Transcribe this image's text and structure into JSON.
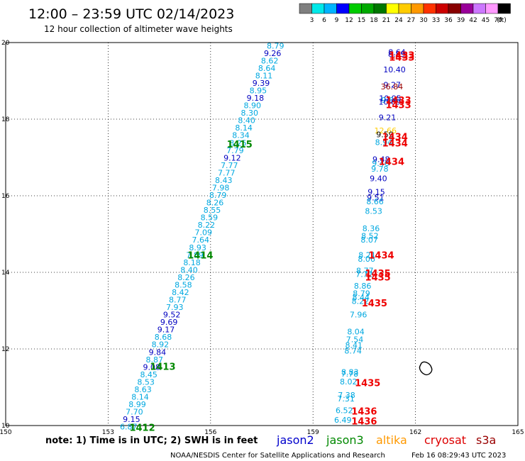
{
  "header": {
    "title": "12:00 – 23:59 UTC 02/14/2023",
    "subtitle": "12 hour collection of altimeter wave heights"
  },
  "colorbar": {
    "colors": [
      "#7f7f7f",
      "#00e8e8",
      "#00b4ff",
      "#0000ff",
      "#00cc00",
      "#00aa00",
      "#007700",
      "#ffff00",
      "#ffcc00",
      "#ff9900",
      "#ff3300",
      "#cc0000",
      "#880000",
      "#990099",
      "#cc77ff",
      "#ff99ff",
      "#000000"
    ],
    "labels": [
      "3",
      "6",
      "9",
      "12",
      "15",
      "18",
      "21",
      "24",
      "27",
      "30",
      "33",
      "36",
      "39",
      "42",
      "45",
      "70"
    ],
    "unit": "(ft)"
  },
  "footer": {
    "note": "note: 1) Time is in UTC; 2) SWH is in feet",
    "legend": [
      {
        "name": "jason2",
        "color": "#0000cc"
      },
      {
        "name": "jason3",
        "color": "#008800"
      },
      {
        "name": "altika",
        "color": "#ff9900"
      },
      {
        "name": "cryosat",
        "color": "#dd0000"
      },
      {
        "name": "s3a",
        "color": "#990000"
      }
    ],
    "credit": "NOAA/NESDIS Center for Satellite Applications and Research",
    "timestamp": "Feb 16 08:29:43 UTC 2023"
  },
  "chart_data": {
    "type": "scatter",
    "xlim": [
      150,
      165
    ],
    "ylim": [
      10,
      20
    ],
    "x_ticks": [
      150,
      153,
      156,
      159,
      162,
      165
    ],
    "y_ticks": [
      10,
      12,
      14,
      16,
      18,
      20
    ],
    "grid": true,
    "track_a": {
      "swh": [
        "6.87",
        "9.15",
        "7.70",
        "8.99",
        "8.14",
        "8.63",
        "8.53",
        "8.45",
        "9.08",
        "8.87",
        "9.84",
        "8.92",
        "8.68",
        "9.17",
        "9.69",
        "9.52",
        "7.93",
        "8.77",
        "8.42",
        "8.58",
        "8.26",
        "8.40",
        "8.18",
        "7.89",
        "8.93",
        "7.64",
        "7.09",
        "8.22",
        "8.59",
        "8.55",
        "8.26",
        "8.79",
        "7.98",
        "8.43",
        "7.77",
        "7.77",
        "9.12",
        "7.79",
        "8.25",
        "8.34",
        "8.14",
        "8.40",
        "8.30",
        "8.90",
        "9.18",
        "8.95",
        "9.39",
        "8.11",
        "8.64",
        "8.62",
        "9.26",
        "8.79"
      ],
      "colors": [
        "c",
        "d",
        "c",
        "c",
        "c",
        "c",
        "c",
        "c",
        "d",
        "c",
        "d",
        "c",
        "c",
        "d",
        "d",
        "d",
        "c",
        "c",
        "c",
        "c",
        "c",
        "c",
        "c",
        "c",
        "c",
        "c",
        "c",
        "c",
        "c",
        "c",
        "c",
        "c",
        "c",
        "c",
        "c",
        "c",
        "d",
        "c",
        "c",
        "c",
        "c",
        "c",
        "c",
        "c",
        "d",
        "c",
        "d",
        "c",
        "c",
        "c",
        "d",
        "c"
      ],
      "lat_start": 9.97,
      "lat_end": 19.92,
      "lon_start": 153.6,
      "lon_end": 157.9
    },
    "track_b": [
      {
        "lat": 19.75,
        "swh": "8.64",
        "c": "d"
      },
      {
        "lat": 19.7,
        "swh": "8.89",
        "c": "d"
      },
      {
        "lat": 19.3,
        "swh": "10.40",
        "c": "d"
      },
      {
        "lat": 18.9,
        "swh": "9.27",
        "c": "d"
      },
      {
        "lat": 18.85,
        "swh": "36.84",
        "c": "m"
      },
      {
        "lat": 18.55,
        "swh": "10.95",
        "c": "d"
      },
      {
        "lat": 18.5,
        "swh": "9.66",
        "c": "c"
      },
      {
        "lat": 18.45,
        "swh": "10.09",
        "c": "d"
      },
      {
        "lat": 18.05,
        "swh": "9.21",
        "c": "d"
      },
      {
        "lat": 17.7,
        "swh": "12.66",
        "c": "y"
      },
      {
        "lat": 17.6,
        "swh": "9.59",
        "c": "k"
      },
      {
        "lat": 17.4,
        "swh": "8.94",
        "c": "c"
      },
      {
        "lat": 16.95,
        "swh": "9.48",
        "c": "d"
      },
      {
        "lat": 16.85,
        "swh": "9.46",
        "c": "c"
      },
      {
        "lat": 16.7,
        "swh": "9.78",
        "c": "c"
      },
      {
        "lat": 16.45,
        "swh": "9.40",
        "c": "d"
      },
      {
        "lat": 16.1,
        "swh": "9.15",
        "c": "d"
      },
      {
        "lat": 15.95,
        "swh": "9.51",
        "c": "d"
      },
      {
        "lat": 15.85,
        "swh": "8.66",
        "c": "c"
      },
      {
        "lat": 15.6,
        "swh": "8.53",
        "c": "c"
      },
      {
        "lat": 15.15,
        "swh": "8.36",
        "c": "c"
      },
      {
        "lat": 14.95,
        "swh": "8.52",
        "c": "c"
      },
      {
        "lat": 14.85,
        "swh": "8.07",
        "c": "c"
      },
      {
        "lat": 14.45,
        "swh": "8.21",
        "c": "c"
      },
      {
        "lat": 14.35,
        "swh": "8.06",
        "c": "c"
      },
      {
        "lat": 14.05,
        "swh": "8.77",
        "c": "c"
      },
      {
        "lat": 13.95,
        "swh": "7.72",
        "c": "c"
      },
      {
        "lat": 13.65,
        "swh": "8.86",
        "c": "c"
      },
      {
        "lat": 13.45,
        "swh": "8.79",
        "c": "c"
      },
      {
        "lat": 13.35,
        "swh": "8.44",
        "c": "c"
      },
      {
        "lat": 13.25,
        "swh": "8.22",
        "c": "c"
      },
      {
        "lat": 12.9,
        "swh": "7.96",
        "c": "c"
      },
      {
        "lat": 12.45,
        "swh": "8.04",
        "c": "c"
      },
      {
        "lat": 12.25,
        "swh": "7.54",
        "c": "c"
      },
      {
        "lat": 12.1,
        "swh": "8.41",
        "c": "c"
      },
      {
        "lat": 11.95,
        "swh": "8.74",
        "c": "c"
      },
      {
        "lat": 11.4,
        "swh": "8.83",
        "c": "c"
      },
      {
        "lat": 11.35,
        "swh": "7.78",
        "c": "c"
      },
      {
        "lat": 11.15,
        "swh": "8.02",
        "c": "c"
      },
      {
        "lat": 10.8,
        "swh": "7.38",
        "c": "c"
      },
      {
        "lat": 10.7,
        "swh": "7.31",
        "c": "c"
      },
      {
        "lat": 10.4,
        "swh": "6.52",
        "c": "c"
      },
      {
        "lat": 10.15,
        "swh": "6.49",
        "c": "c"
      }
    ],
    "time_labels": [
      {
        "lon": 156.85,
        "lat": 17.35,
        "text": "1415",
        "c": "g"
      },
      {
        "lon": 155.7,
        "lat": 14.45,
        "text": "1414",
        "c": "g"
      },
      {
        "lon": 154.6,
        "lat": 11.55,
        "text": "1413",
        "c": "g"
      },
      {
        "lon": 154.0,
        "lat": 9.95,
        "text": "1412",
        "c": "g"
      },
      {
        "lon": 161.6,
        "lat": 19.68,
        "text": "1433",
        "c": "r"
      },
      {
        "lon": 161.6,
        "lat": 19.62,
        "text": "1433",
        "c": "r"
      },
      {
        "lon": 161.5,
        "lat": 18.5,
        "text": "1433",
        "c": "r"
      },
      {
        "lon": 161.5,
        "lat": 18.38,
        "text": "1433",
        "c": "r"
      },
      {
        "lon": 161.4,
        "lat": 17.55,
        "text": "1434",
        "c": "r"
      },
      {
        "lon": 161.4,
        "lat": 17.38,
        "text": "1434",
        "c": "r"
      },
      {
        "lon": 161.3,
        "lat": 16.9,
        "text": "1434",
        "c": "r"
      },
      {
        "lon": 161.0,
        "lat": 14.45,
        "text": "1434",
        "c": "r"
      },
      {
        "lon": 160.9,
        "lat": 13.98,
        "text": "1435",
        "c": "r"
      },
      {
        "lon": 160.9,
        "lat": 13.88,
        "text": "1435",
        "c": "r"
      },
      {
        "lon": 160.8,
        "lat": 13.2,
        "text": "1435",
        "c": "r"
      },
      {
        "lon": 160.6,
        "lat": 11.12,
        "text": "1435",
        "c": "r"
      },
      {
        "lon": 160.5,
        "lat": 10.38,
        "text": "1436",
        "c": "r"
      },
      {
        "lon": 160.5,
        "lat": 10.12,
        "text": "1436",
        "c": "r"
      }
    ]
  }
}
